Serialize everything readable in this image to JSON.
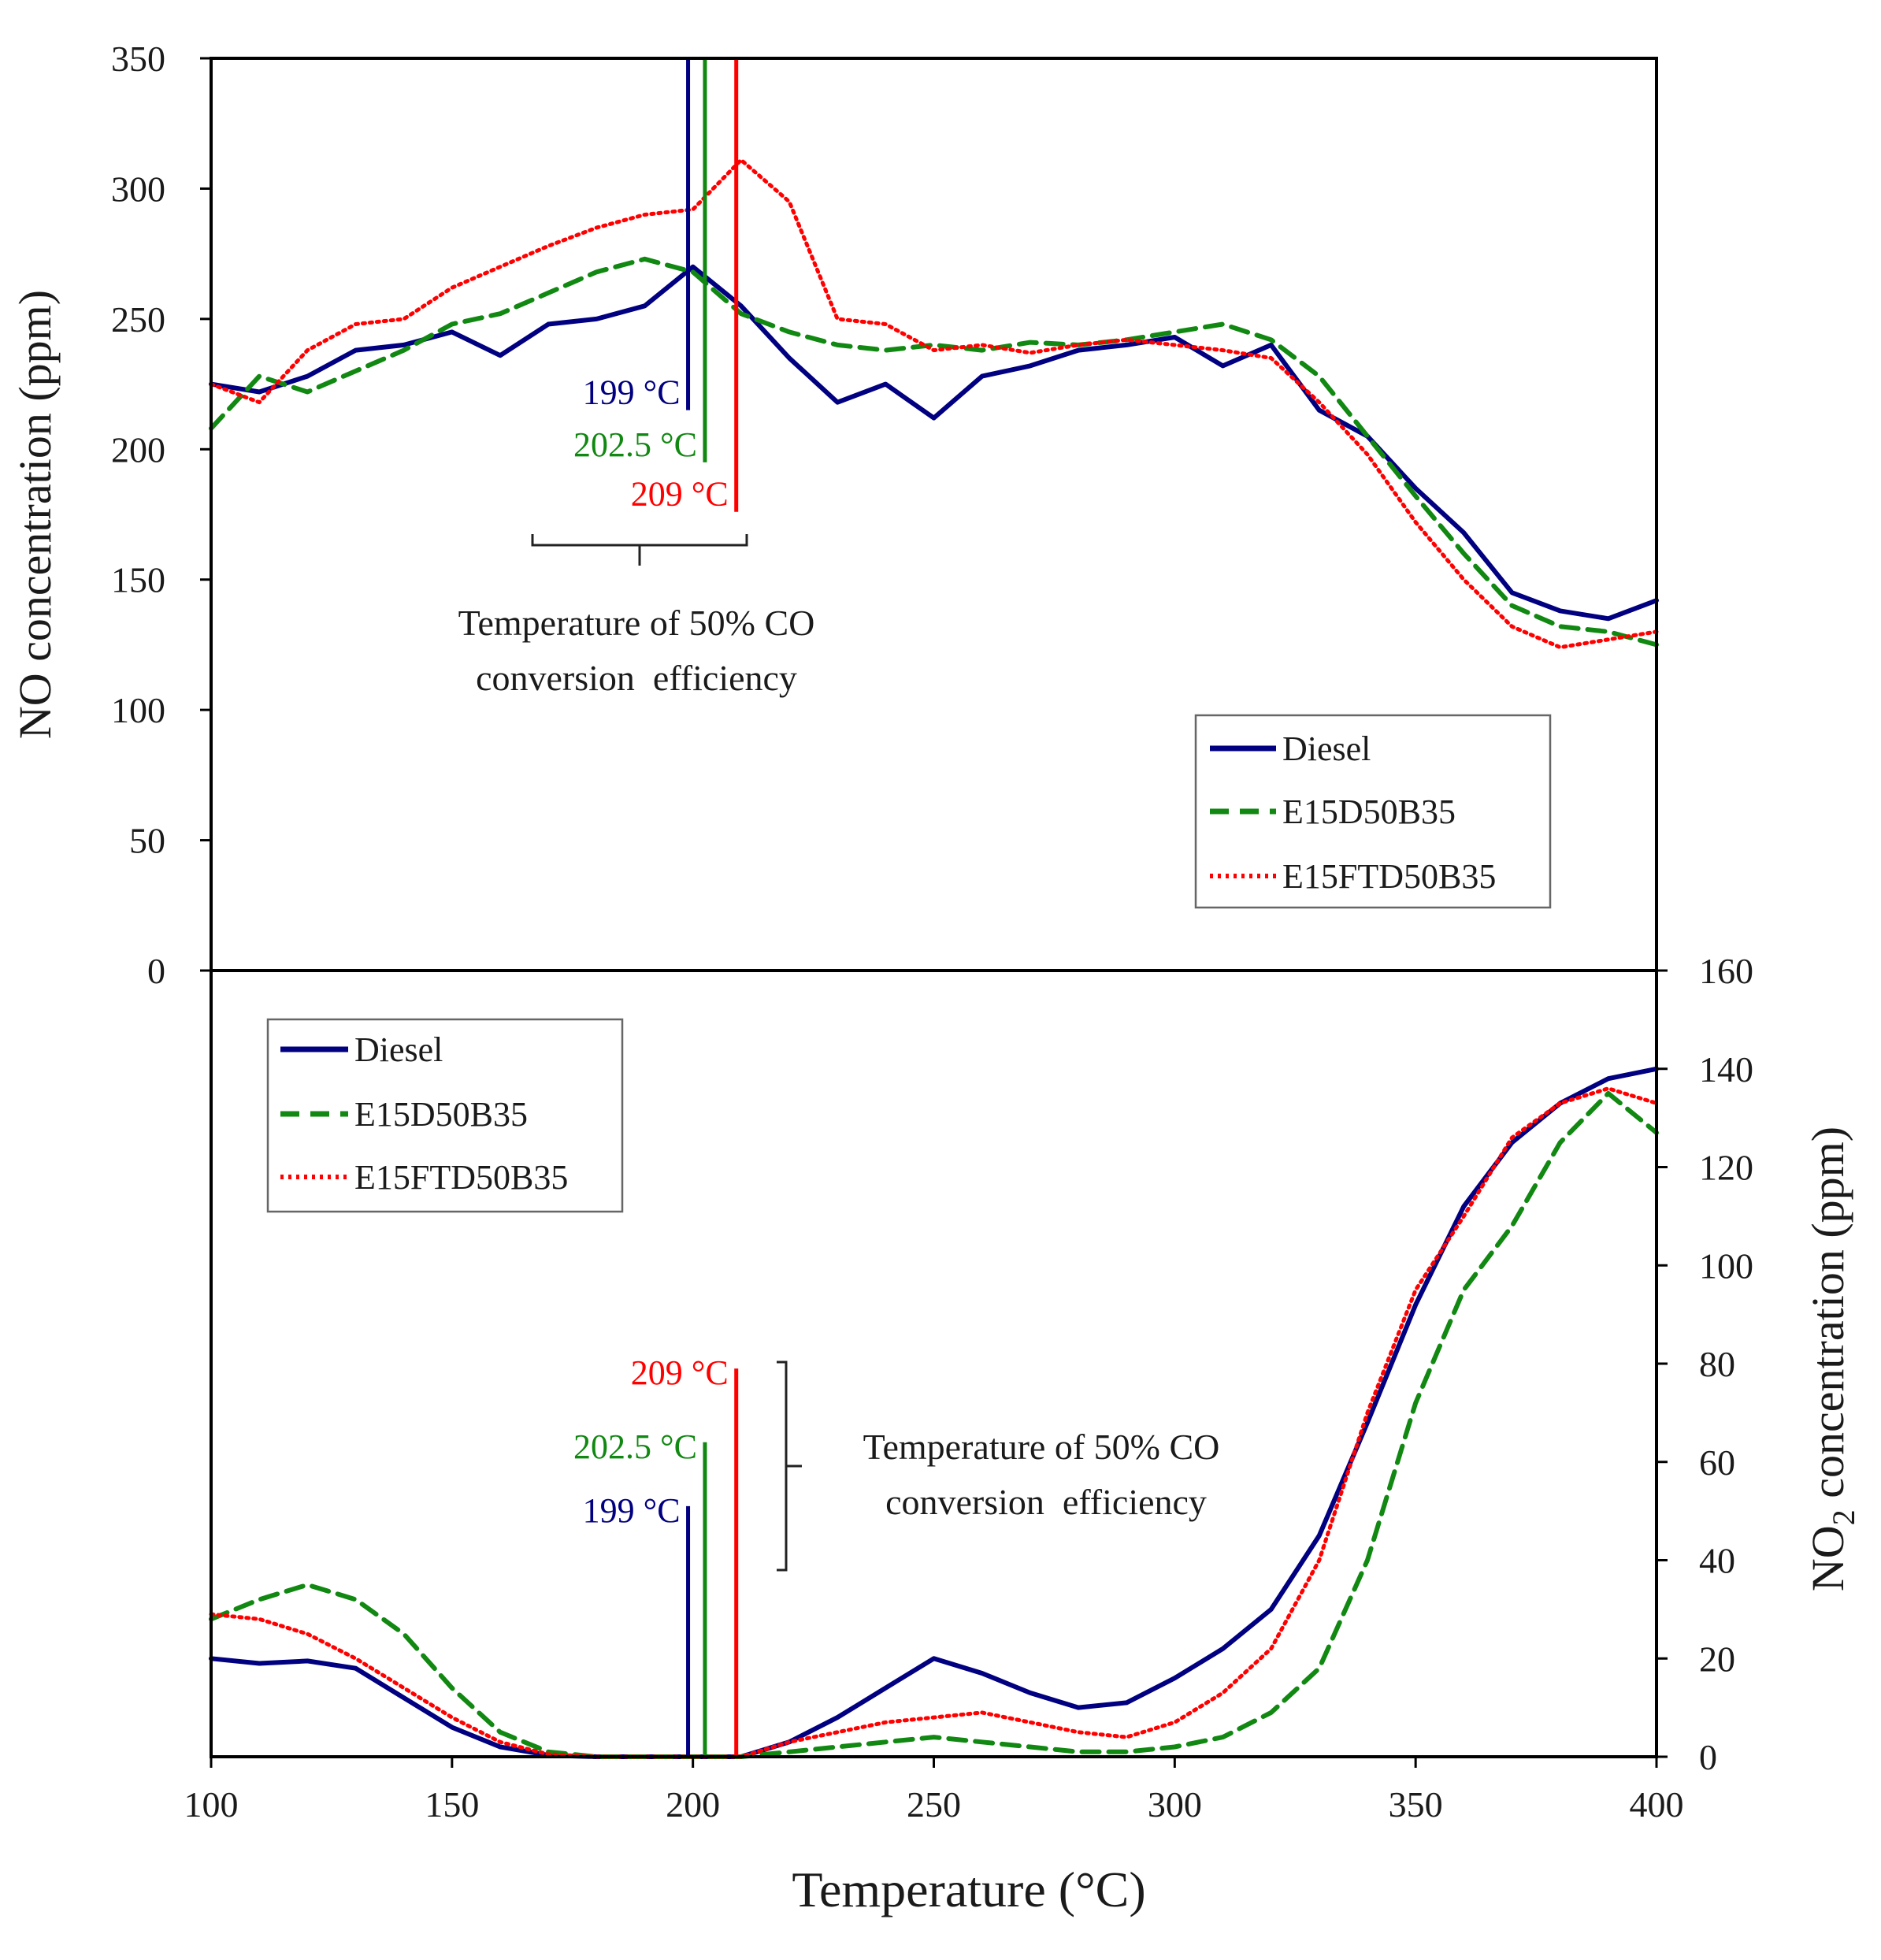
{
  "colors": {
    "diesel": "#000080",
    "e15d50b35": "#118811",
    "e15ftd50b35": "#ff0000",
    "axis": "#000000",
    "text": "#1a1a1a"
  },
  "xaxis": {
    "label": "Temperature (°C)",
    "min": 100,
    "max": 400,
    "ticks": [
      "100",
      "150",
      "200",
      "250",
      "300",
      "350",
      "400"
    ],
    "tick_values": [
      100,
      150,
      200,
      250,
      300,
      350,
      400
    ]
  },
  "legend": [
    {
      "key": "diesel",
      "label": "Diesel",
      "style": "solid"
    },
    {
      "key": "e15d50b35",
      "label": "E15D50B35",
      "style": "dashed"
    },
    {
      "key": "e15ftd50b35",
      "label": "E15FTD50B35",
      "style": "dotted"
    }
  ],
  "chart_data": [
    {
      "type": "line",
      "panel": "top",
      "ylabel": "NO concentration (ppm)",
      "ylim": [
        0,
        350
      ],
      "yticks": [
        "0",
        "50",
        "100",
        "150",
        "200",
        "250",
        "300",
        "350"
      ],
      "ytick_values": [
        0,
        50,
        100,
        150,
        200,
        250,
        300,
        350
      ],
      "x": [
        100,
        110,
        120,
        130,
        140,
        150,
        160,
        170,
        180,
        190,
        200,
        210,
        220,
        230,
        240,
        250,
        260,
        270,
        280,
        290,
        300,
        310,
        320,
        330,
        340,
        350,
        360,
        370,
        380,
        390,
        400
      ],
      "series": [
        {
          "name": "Diesel",
          "key": "diesel",
          "values": [
            225,
            222,
            228,
            238,
            240,
            245,
            236,
            248,
            250,
            255,
            270,
            255,
            235,
            218,
            225,
            212,
            228,
            232,
            238,
            240,
            243,
            232,
            240,
            215,
            205,
            185,
            168,
            145,
            138,
            135,
            142
          ]
        },
        {
          "name": "E15D50B35",
          "key": "e15d50b35",
          "values": [
            208,
            228,
            222,
            230,
            238,
            248,
            252,
            260,
            268,
            273,
            268,
            252,
            245,
            240,
            238,
            240,
            238,
            241,
            240,
            242,
            245,
            248,
            242,
            228,
            205,
            182,
            160,
            140,
            132,
            130,
            125
          ]
        },
        {
          "name": "E15FTD50B35",
          "key": "e15ftd50b35",
          "values": [
            225,
            218,
            238,
            248,
            250,
            262,
            270,
            278,
            285,
            290,
            292,
            311,
            295,
            250,
            248,
            238,
            240,
            237,
            240,
            242,
            240,
            238,
            235,
            218,
            198,
            172,
            150,
            132,
            124,
            127,
            130
          ]
        }
      ],
      "markers": [
        {
          "key": "diesel",
          "label": "199 °C",
          "x": 199,
          "y_from": 215,
          "y_to": 350
        },
        {
          "key": "e15d50b35",
          "label": "202.5 °C",
          "x": 202.5,
          "y_from": 195,
          "y_to": 350
        },
        {
          "key": "e15ftd50b35",
          "label": "209 °C",
          "x": 209,
          "y_from": 176,
          "y_to": 350
        }
      ],
      "annotation": {
        "line1": "Temperature of 50% CO",
        "line2": "conversion  efficiency"
      },
      "legend_position": "bottom-right"
    },
    {
      "type": "line",
      "panel": "bottom",
      "ylabel": "NO",
      "ylabel_sub": "2",
      "ylabel_rest": " concentration (ppm)",
      "ylim": [
        0,
        160
      ],
      "yticks": [
        "0",
        "20",
        "40",
        "60",
        "80",
        "100",
        "120",
        "140",
        "160"
      ],
      "ytick_values": [
        0,
        20,
        40,
        60,
        80,
        100,
        120,
        140,
        160
      ],
      "x": [
        100,
        110,
        120,
        130,
        140,
        150,
        160,
        170,
        180,
        190,
        200,
        210,
        220,
        230,
        240,
        250,
        260,
        270,
        280,
        290,
        300,
        310,
        320,
        330,
        340,
        350,
        360,
        370,
        380,
        390,
        400
      ],
      "series": [
        {
          "name": "Diesel",
          "key": "diesel",
          "values": [
            20,
            19,
            19.5,
            18,
            12,
            6,
            2,
            0.3,
            0,
            0,
            0,
            0,
            3,
            8,
            14,
            20,
            17,
            13,
            10,
            11,
            16,
            22,
            30,
            45,
            68,
            92,
            112,
            125,
            133,
            138,
            140
          ]
        },
        {
          "name": "E15D50B35",
          "key": "e15d50b35",
          "values": [
            28,
            32,
            35,
            32,
            25,
            14,
            5,
            1,
            0,
            0,
            0,
            0,
            1,
            2,
            3,
            4,
            3,
            2,
            1,
            1,
            2,
            4,
            9,
            18,
            40,
            72,
            95,
            108,
            125,
            135,
            127
          ]
        },
        {
          "name": "E15FTD50B35",
          "key": "e15ftd50b35",
          "values": [
            29,
            28,
            25,
            20,
            14,
            8,
            3,
            0.5,
            0,
            0,
            0,
            0,
            3,
            5,
            7,
            8,
            9,
            7,
            5,
            4,
            7,
            13,
            22,
            40,
            70,
            95,
            110,
            126,
            133,
            136,
            133
          ]
        }
      ],
      "markers": [
        {
          "key": "diesel",
          "label": "199 °C",
          "x": 199,
          "y_from": 0,
          "y_to": 51
        },
        {
          "key": "e15d50b35",
          "label": "202.5 °C",
          "x": 202.5,
          "y_from": 0,
          "y_to": 64
        },
        {
          "key": "e15ftd50b35",
          "label": "209 °C",
          "x": 209,
          "y_from": 0,
          "y_to": 79
        }
      ],
      "annotation": {
        "line1": "Temperature of 50% CO",
        "line2": "conversion  efficiency"
      },
      "legend_position": "top-left"
    }
  ]
}
